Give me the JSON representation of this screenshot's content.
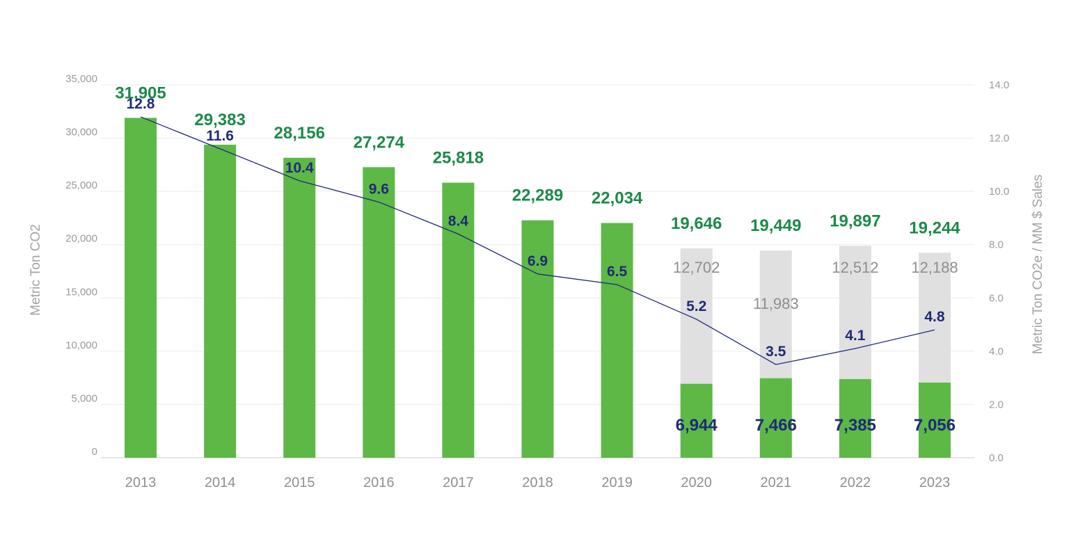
{
  "chart_data": {
    "type": "bar",
    "categories": [
      "2013",
      "2014",
      "2015",
      "2016",
      "2017",
      "2018",
      "2019",
      "2020",
      "2021",
      "2022",
      "2023"
    ],
    "series": [
      {
        "values": [
          31905,
          29383,
          28156,
          27274,
          25818,
          22289,
          22034,
          6944,
          7466,
          7385,
          7056
        ],
        "color": "#5db846",
        "axis": "left",
        "render": "bar"
      },
      {
        "values": [
          null,
          null,
          null,
          null,
          null,
          null,
          null,
          12702,
          11983,
          12512,
          12188
        ],
        "color": "#e0e0e0",
        "axis": "left",
        "render": "bar-stacked-top"
      },
      {
        "values": [
          12.8,
          11.6,
          10.4,
          9.6,
          8.4,
          6.9,
          6.5,
          5.2,
          3.5,
          4.1,
          4.8
        ],
        "color": "#1f2a78",
        "axis": "right",
        "render": "line"
      }
    ],
    "total_labels": [
      "31,905",
      "29,383",
      "28,156",
      "27,274",
      "25,818",
      "22,289",
      "22,034",
      "19,646",
      "19,449",
      "19,897",
      "19,244"
    ],
    "gray_labels": [
      "",
      "",
      "",
      "",
      "",
      "",
      "",
      "12,702",
      "11,983",
      "12,512",
      "12,188"
    ],
    "bottom_labels": [
      "",
      "",
      "",
      "",
      "",
      "",
      "",
      "6,944",
      "7,466",
      "7,385",
      "7,056"
    ],
    "line_labels": [
      "12.8",
      "11.6",
      "10.4",
      "9.6",
      "8.4",
      "6.9",
      "6.5",
      "5.2",
      "3.5",
      "4.1",
      "4.8"
    ],
    "bar_heights": [
      31905,
      29383,
      28156,
      27274,
      25818,
      22289,
      22034,
      19646,
      19449,
      19897,
      19244
    ],
    "ylabel": "Metric Ton CO2",
    "y2label": "Metric Ton CO2e / MM $ Sales",
    "ylim": [
      0,
      35000
    ],
    "y2lim": [
      0,
      14
    ],
    "y_ticks": [
      "0",
      "5,000",
      "10,000",
      "15,000",
      "20,000",
      "25,000",
      "30,000",
      "35,000"
    ],
    "y2_ticks": [
      "0.0",
      "2.0",
      "4.0",
      "6.0",
      "8.0",
      "10.0",
      "12.0",
      "14.0"
    ],
    "grid": true,
    "colors": {
      "green_bar": "#5db846",
      "gray_bar": "#e0e0e0",
      "line": "#1f2a78",
      "total_text": "#1b8a4a",
      "gray_text": "#8e8e8e",
      "scope_text": "#1f2a78"
    }
  }
}
